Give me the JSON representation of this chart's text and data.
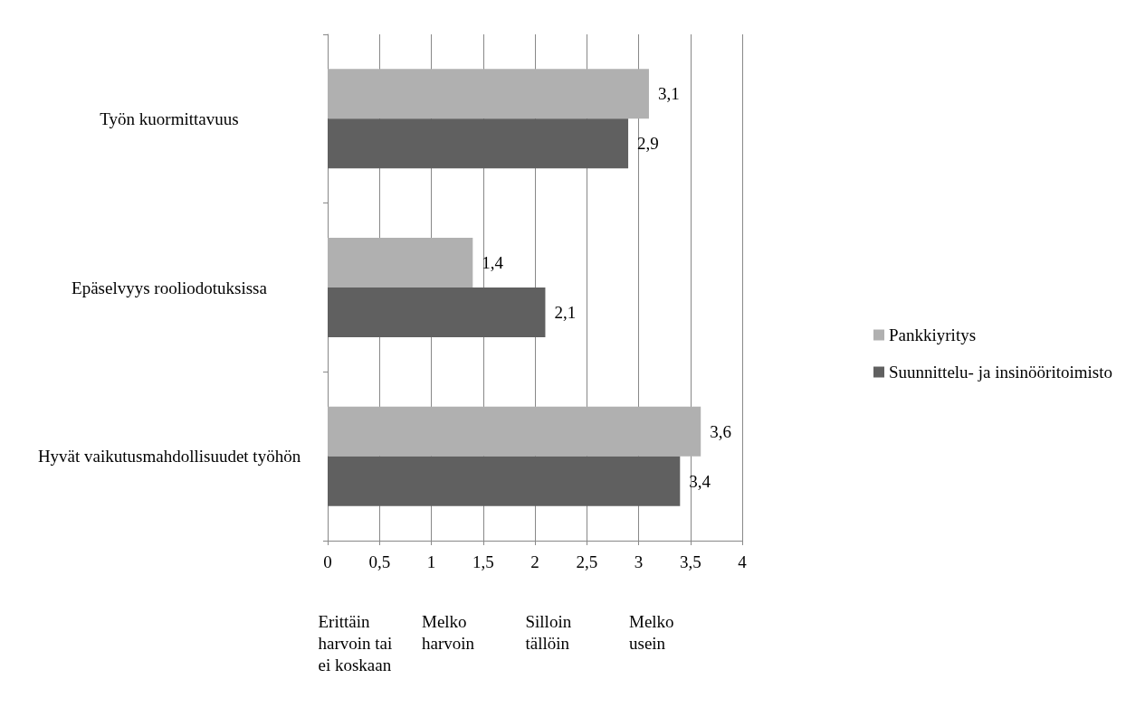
{
  "chart_data": {
    "type": "bar",
    "orientation": "horizontal",
    "categories": [
      "Työn kuormittavuus",
      "Epäselvyys rooliodotuksissa",
      "Hyvät vaikutusmahdollisuudet työhön"
    ],
    "series": [
      {
        "name": "Pankkiyritys",
        "color": "#b0b0b0",
        "values": [
          3.1,
          1.4,
          3.6
        ],
        "value_labels": [
          "3,1",
          "1,4",
          "3,6"
        ]
      },
      {
        "name": "Suunnittelu- ja insinööritoimisto",
        "color": "#606060",
        "values": [
          2.9,
          2.1,
          3.4
        ],
        "value_labels": [
          "2,9",
          "2,1",
          "3,4"
        ]
      }
    ],
    "xlim": [
      0,
      4
    ],
    "xticks": [
      0,
      {
        "value": 0.5,
        "label": "0,5"
      },
      1,
      {
        "value": 1.5,
        "label": "1,5"
      },
      2,
      {
        "value": 2.5,
        "label": "2,5"
      },
      3,
      {
        "value": 3.5,
        "label": "3,5"
      },
      4
    ],
    "grid": "x",
    "legend": "right",
    "annotations": [
      "Erittäin harvoin tai ei koskaan",
      "Melko harvoin",
      "Silloin tällöin",
      "Melko usein"
    ]
  }
}
